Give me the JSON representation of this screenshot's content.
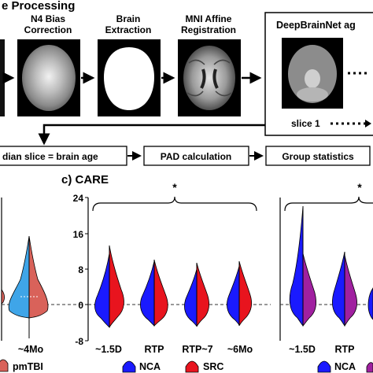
{
  "pipeline": {
    "section_title": "e Processing",
    "steps": [
      {
        "label_line1": "N4 Bias",
        "label_line2": "Correction"
      },
      {
        "label_line1": "Brain",
        "label_line2": "Extraction"
      },
      {
        "label_line1": "MNI Affine",
        "label_line2": "Registration"
      }
    ],
    "deepbrainnet_label": "DeepBrainNet ag",
    "slice_label": "slice 1",
    "bottom_row": [
      {
        "label": "dian slice = brain age"
      },
      {
        "label": "PAD calculation"
      },
      {
        "label": "Group statistics"
      }
    ]
  },
  "panel_c": {
    "title": "c) CARE",
    "significance": "*"
  },
  "colors": {
    "blue": "#1a1aff",
    "red": "#e8141e",
    "purple": "#a020a0",
    "light_blue": "#3fa5e8",
    "salmon": "#d9625a",
    "dashed": "#333333"
  },
  "legend": {
    "left": {
      "label": "pmTBI",
      "color": "#d9625a"
    },
    "middle": [
      {
        "label": "NCA",
        "color": "#1a1aff"
      },
      {
        "label": "SRC",
        "color": "#e8141e"
      }
    ],
    "right": [
      {
        "label": "NCA",
        "color": "#1a1aff"
      }
    ]
  },
  "chart_data": [
    {
      "type": "violin",
      "title": "",
      "categories": [
        "~4Mo"
      ],
      "ylim": [
        -8,
        24
      ]
    },
    {
      "type": "violin",
      "title": "c) CARE",
      "categories": [
        "~1.5D",
        "RTP",
        "RTP~7",
        "~6Mo"
      ],
      "y_ticks": [
        "24",
        "16",
        "8",
        "0",
        "-8"
      ],
      "ylim": [
        -8,
        24
      ],
      "series": [
        {
          "name": "NCA",
          "color": "#1a1aff"
        },
        {
          "name": "SRC",
          "color": "#e8141e"
        }
      ]
    },
    {
      "type": "violin",
      "title": "",
      "categories": [
        "~1.5D",
        "RTP"
      ],
      "ylim": [
        -8,
        24
      ],
      "series": [
        {
          "name": "NCA",
          "color": "#1a1aff"
        }
      ]
    }
  ]
}
